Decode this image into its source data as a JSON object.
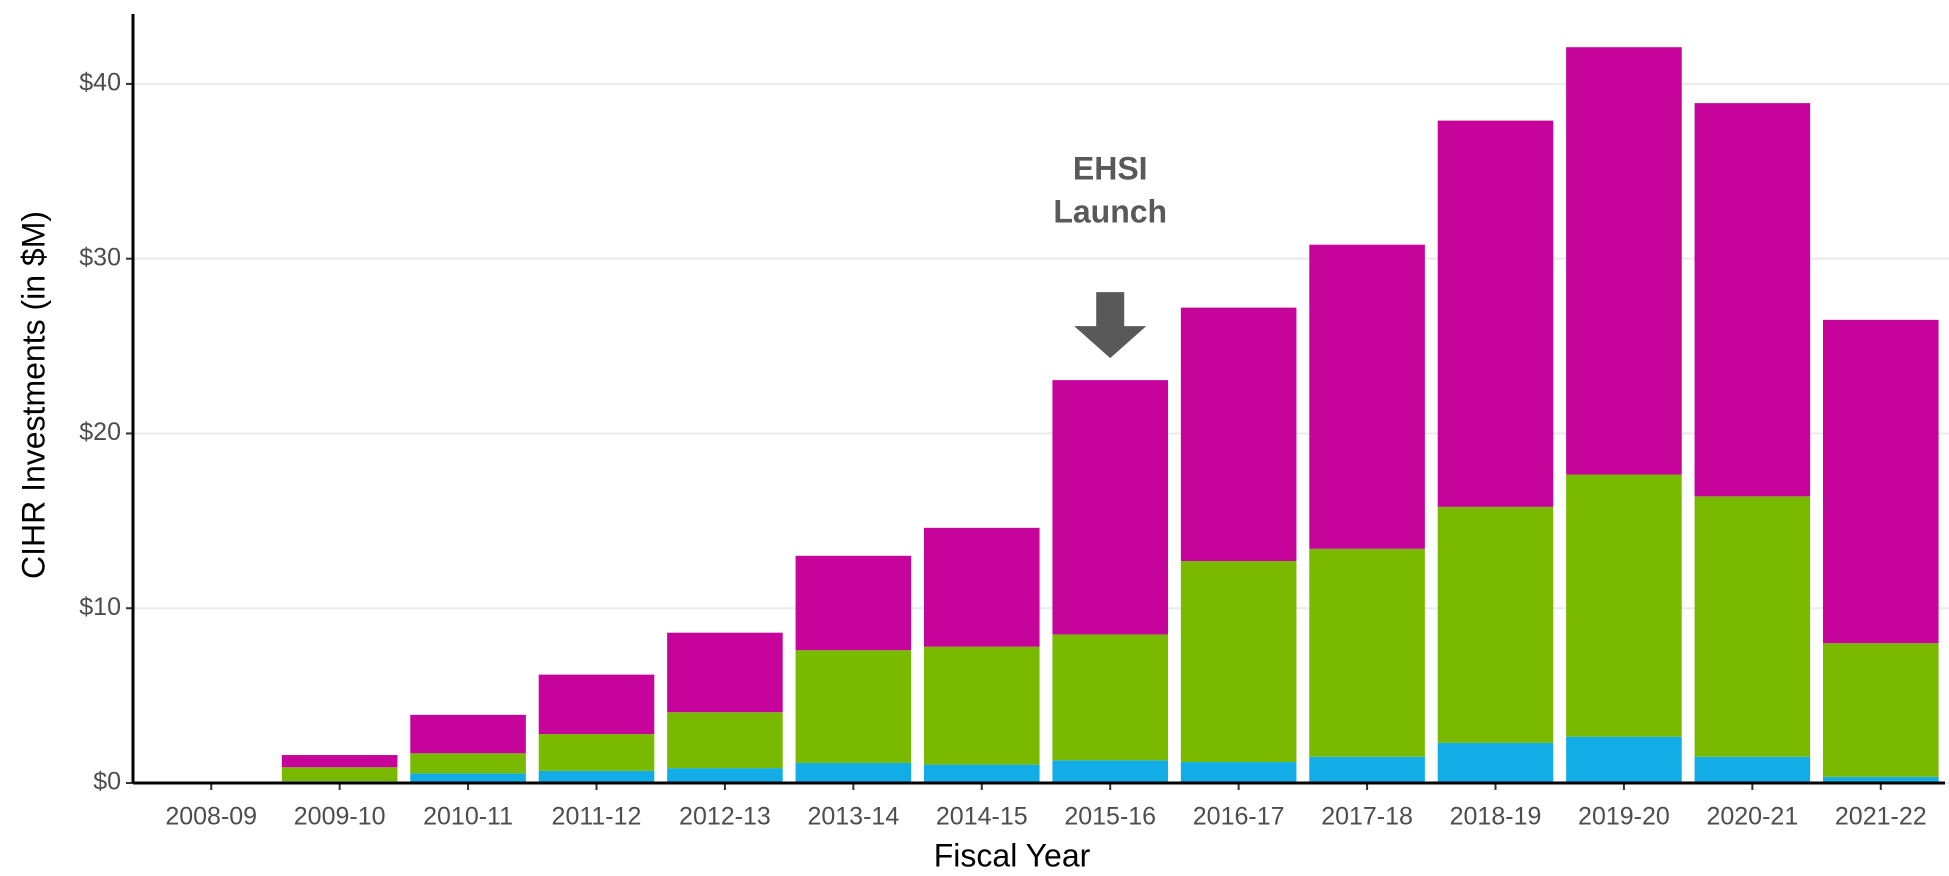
{
  "chart_data": {
    "type": "stacked_bar",
    "x_label": "Fiscal Year",
    "y_label": "CIHR Investments (in $M)",
    "categories": [
      "2008-09",
      "2009-10",
      "2010-11",
      "2011-12",
      "2012-13",
      "2013-14",
      "2014-15",
      "2015-16",
      "2016-17",
      "2017-18",
      "2018-19",
      "2019-20",
      "2020-21",
      "2021-22"
    ],
    "series": [
      {
        "color": "#12ade6",
        "values": [
          0,
          0.1,
          0.55,
          0.7,
          0.85,
          1.15,
          1.05,
          1.3,
          1.2,
          1.5,
          2.3,
          2.65,
          1.5,
          0.35
        ]
      },
      {
        "color": "#79b900",
        "values": [
          0,
          0.8,
          1.15,
          2.1,
          3.2,
          6.45,
          6.75,
          7.2,
          11.5,
          11.9,
          13.5,
          15.0,
          14.9,
          7.65
        ]
      },
      {
        "color": "#c6049b",
        "values": [
          0,
          0.7,
          2.2,
          3.4,
          4.55,
          5.4,
          6.8,
          14.55,
          14.5,
          17.4,
          22.1,
          24.45,
          22.5,
          18.5
        ]
      }
    ],
    "ylim": [
      0,
      44
    ],
    "yticks": [
      {
        "value": 0,
        "label": "$0"
      },
      {
        "value": 10,
        "label": "$10"
      },
      {
        "value": 20,
        "label": "$20"
      },
      {
        "value": 30,
        "label": "$30"
      },
      {
        "value": 40,
        "label": "$40"
      }
    ],
    "grid": true,
    "annotation": {
      "text": [
        "EHSI",
        "Launch"
      ]
    }
  }
}
